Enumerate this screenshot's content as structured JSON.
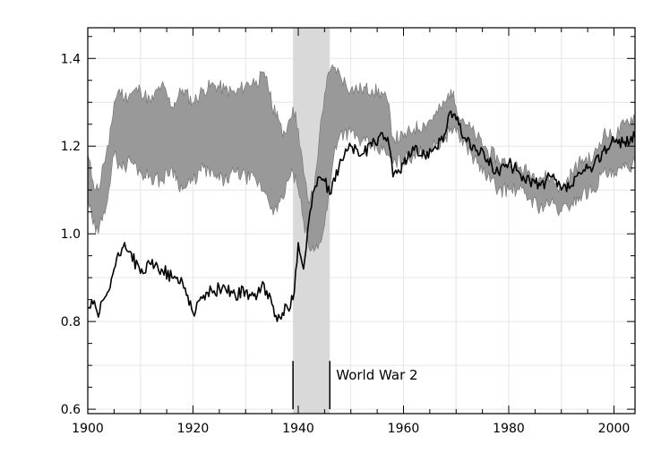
{
  "chart_data": {
    "type": "line",
    "title": "",
    "xlabel": "",
    "ylabel": "",
    "xlim": [
      1900,
      2004
    ],
    "ylim": [
      0.59,
      1.47
    ],
    "x_ticks": [
      1900,
      1920,
      1940,
      1960,
      1980,
      2000
    ],
    "x_tick_labels": [
      "1900",
      "1920",
      "1940",
      "1960",
      "1980",
      "2000"
    ],
    "y_ticks": [
      0.6,
      0.8,
      1.0,
      1.2,
      1.4
    ],
    "y_tick_labels": [
      "0.6",
      "0.8",
      "1.0",
      "1.2",
      "1.4"
    ],
    "grid": true,
    "colors": {
      "band": "#999999",
      "line": "#000000",
      "shade": "#d9d9d9",
      "grid": "#e6e6e6"
    },
    "highlight_span": {
      "x": [
        1939,
        1946
      ],
      "label": "World War 2"
    },
    "band": {
      "x": [
        1900,
        1901,
        1902,
        1903,
        1904,
        1905,
        1906,
        1907,
        1908,
        1910,
        1912,
        1914,
        1916,
        1918,
        1920,
        1922,
        1924,
        1926,
        1928,
        1930,
        1932,
        1934,
        1935,
        1936,
        1937,
        1938,
        1939,
        1940,
        1941,
        1942,
        1943,
        1944,
        1945,
        1946,
        1947,
        1948,
        1950,
        1952,
        1954,
        1956,
        1957,
        1958,
        1960,
        1962,
        1964,
        1966,
        1968,
        1969,
        1970,
        1972,
        1974,
        1976,
        1978,
        1980,
        1982,
        1984,
        1986,
        1988,
        1990,
        1992,
        1994,
        1996,
        1998,
        2000,
        2002,
        2004
      ],
      "upper": [
        1.18,
        1.12,
        1.1,
        1.16,
        1.2,
        1.3,
        1.33,
        1.31,
        1.32,
        1.33,
        1.3,
        1.34,
        1.29,
        1.33,
        1.3,
        1.33,
        1.34,
        1.33,
        1.32,
        1.34,
        1.35,
        1.36,
        1.29,
        1.28,
        1.22,
        1.25,
        1.29,
        1.24,
        1.14,
        1.07,
        1.1,
        1.22,
        1.32,
        1.37,
        1.38,
        1.36,
        1.33,
        1.33,
        1.33,
        1.32,
        1.3,
        1.22,
        1.22,
        1.24,
        1.25,
        1.27,
        1.3,
        1.33,
        1.29,
        1.25,
        1.22,
        1.19,
        1.17,
        1.16,
        1.15,
        1.14,
        1.13,
        1.13,
        1.1,
        1.14,
        1.17,
        1.17,
        1.23,
        1.22,
        1.25,
        1.27
      ],
      "lower": [
        1.08,
        1.02,
        1.0,
        1.05,
        1.1,
        1.18,
        1.16,
        1.15,
        1.17,
        1.14,
        1.13,
        1.12,
        1.15,
        1.1,
        1.12,
        1.15,
        1.13,
        1.12,
        1.14,
        1.13,
        1.12,
        1.09,
        1.06,
        1.05,
        1.08,
        1.12,
        1.14,
        1.1,
        1.03,
        0.97,
        0.96,
        0.98,
        1.02,
        1.1,
        1.2,
        1.23,
        1.23,
        1.21,
        1.2,
        1.19,
        1.18,
        1.16,
        1.17,
        1.18,
        1.19,
        1.2,
        1.22,
        1.24,
        1.23,
        1.2,
        1.16,
        1.13,
        1.1,
        1.1,
        1.1,
        1.08,
        1.06,
        1.07,
        1.05,
        1.07,
        1.09,
        1.1,
        1.14,
        1.13,
        1.15,
        1.16
      ]
    },
    "series": [
      {
        "x": [
          1900,
          1901,
          1902,
          1903,
          1904,
          1905,
          1906,
          1907,
          1908,
          1910,
          1912,
          1914,
          1916,
          1918,
          1919,
          1920,
          1922,
          1924,
          1926,
          1928,
          1930,
          1932,
          1933,
          1934,
          1935,
          1936,
          1937,
          1938,
          1939,
          1940,
          1941,
          1942,
          1943,
          1944,
          1945,
          1946,
          1947,
          1948,
          1950,
          1952,
          1954,
          1956,
          1957,
          1958,
          1960,
          1962,
          1964,
          1966,
          1968,
          1969,
          1970,
          1972,
          1974,
          1976,
          1978,
          1980,
          1982,
          1984,
          1986,
          1988,
          1990,
          1992,
          1994,
          1996,
          1998,
          2000,
          2002,
          2004
        ],
        "values": [
          0.83,
          0.84,
          0.81,
          0.85,
          0.87,
          0.92,
          0.95,
          0.98,
          0.96,
          0.91,
          0.93,
          0.92,
          0.9,
          0.89,
          0.86,
          0.82,
          0.86,
          0.87,
          0.88,
          0.86,
          0.87,
          0.85,
          0.88,
          0.87,
          0.84,
          0.8,
          0.82,
          0.83,
          0.85,
          0.98,
          0.92,
          1.03,
          1.1,
          1.13,
          1.12,
          1.09,
          1.12,
          1.17,
          1.2,
          1.18,
          1.2,
          1.23,
          1.22,
          1.13,
          1.16,
          1.19,
          1.18,
          1.2,
          1.23,
          1.28,
          1.26,
          1.21,
          1.19,
          1.17,
          1.14,
          1.16,
          1.14,
          1.12,
          1.11,
          1.13,
          1.1,
          1.11,
          1.14,
          1.15,
          1.19,
          1.21,
          1.21,
          1.22
        ]
      }
    ]
  }
}
